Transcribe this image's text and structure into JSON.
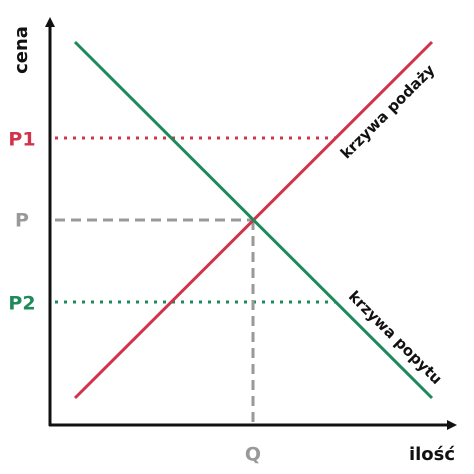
{
  "axes": {
    "y_label": "cena",
    "x_label": "ilość"
  },
  "levels": {
    "p1": "P1",
    "p": "P",
    "p2": "P2",
    "q": "Q"
  },
  "curves": {
    "supply": "krzywa podaży",
    "demand": "krzywa popytu"
  }
}
